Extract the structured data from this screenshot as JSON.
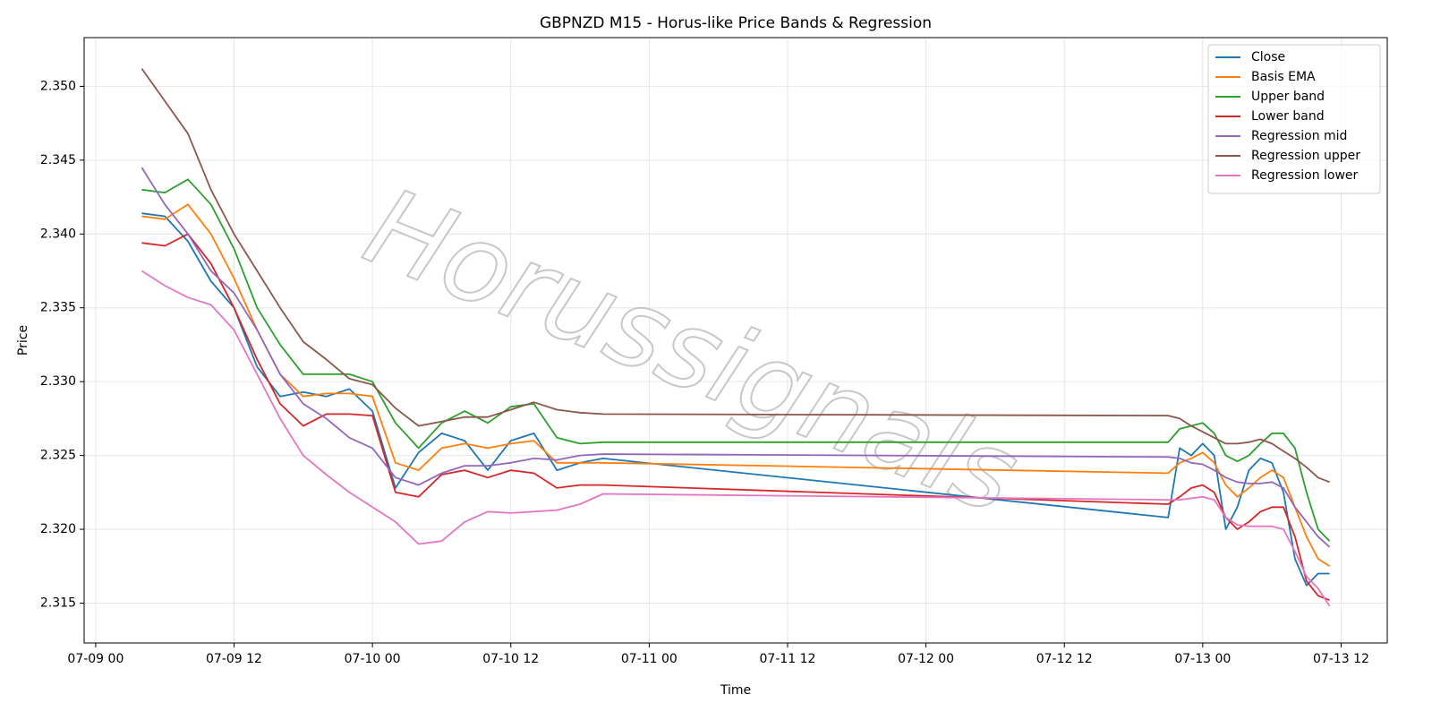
{
  "chart_data": {
    "type": "line",
    "title": "GBPNZD M15 - Horus-like Price Bands & Regression",
    "xlabel": "Time",
    "ylabel": "Price",
    "watermark": "Horussignals",
    "x": [
      "07-09 04",
      "07-09 06",
      "07-09 08",
      "07-09 10",
      "07-09 12",
      "07-09 14",
      "07-09 16",
      "07-09 18",
      "07-09 20",
      "07-09 22",
      "07-10 00",
      "07-10 02",
      "07-10 04",
      "07-10 06",
      "07-10 08",
      "07-10 10",
      "07-10 12",
      "07-10 14",
      "07-10 16",
      "07-10 18",
      "07-10 20",
      "07-12 21",
      "07-12 22",
      "07-12 23",
      "07-13 00",
      "07-13 01",
      "07-13 02",
      "07-13 03",
      "07-13 04",
      "07-13 05",
      "07-13 06",
      "07-13 07",
      "07-13 08",
      "07-13 09",
      "07-13 10",
      "07-13 11"
    ],
    "series": [
      {
        "name": "Close",
        "color": "#1f77b4",
        "values": [
          2.3414,
          2.3412,
          2.3395,
          2.3368,
          2.335,
          2.331,
          2.329,
          2.3293,
          2.329,
          2.3295,
          2.328,
          2.3228,
          2.3252,
          2.3265,
          2.326,
          2.324,
          2.326,
          2.3265,
          2.324,
          2.3245,
          2.3248,
          2.3208,
          2.3255,
          2.325,
          2.3258,
          2.325,
          2.32,
          2.3215,
          2.324,
          2.3248,
          2.3245,
          2.3225,
          2.318,
          2.3162,
          2.317,
          2.317
        ]
      },
      {
        "name": "Basis EMA",
        "color": "#ff7f0e",
        "values": [
          2.3412,
          2.341,
          2.342,
          2.34,
          2.337,
          2.3335,
          2.3305,
          2.329,
          2.3292,
          2.3292,
          2.329,
          2.3245,
          2.324,
          2.3255,
          2.3258,
          2.3255,
          2.3258,
          2.326,
          2.3245,
          2.3245,
          2.3245,
          2.3238,
          2.3245,
          2.3248,
          2.3252,
          2.3245,
          2.323,
          2.3222,
          2.3228,
          2.3235,
          2.324,
          2.3235,
          2.3215,
          2.3195,
          2.318,
          2.3175
        ]
      },
      {
        "name": "Upper band",
        "color": "#2ca02c",
        "values": [
          2.343,
          2.3428,
          2.3437,
          2.342,
          2.339,
          2.335,
          2.3325,
          2.3305,
          2.3305,
          2.3305,
          2.33,
          2.3272,
          2.3255,
          2.3272,
          2.328,
          2.3272,
          2.3283,
          2.3285,
          2.3262,
          2.3258,
          2.3259,
          2.3259,
          2.3268,
          2.327,
          2.3272,
          2.3265,
          2.325,
          2.3246,
          2.325,
          2.3258,
          2.3265,
          2.3265,
          2.3255,
          2.3225,
          2.32,
          2.3192
        ]
      },
      {
        "name": "Lower band",
        "color": "#d62728",
        "values": [
          2.3394,
          2.3392,
          2.34,
          2.338,
          2.335,
          2.3315,
          2.3285,
          2.327,
          2.3278,
          2.3278,
          2.3277,
          2.3225,
          2.3222,
          2.3237,
          2.324,
          2.3235,
          2.324,
          2.3238,
          2.3228,
          2.323,
          2.323,
          2.3217,
          2.3222,
          2.3228,
          2.323,
          2.3225,
          2.3208,
          2.32,
          2.3205,
          2.3212,
          2.3215,
          2.3215,
          2.3195,
          2.3165,
          2.3155,
          2.3152
        ]
      },
      {
        "name": "Regression mid",
        "color": "#9467bd",
        "values": [
          2.3445,
          2.342,
          2.34,
          2.3375,
          2.336,
          2.3335,
          2.3305,
          2.3285,
          2.3275,
          2.3262,
          2.3255,
          2.3235,
          2.323,
          2.3238,
          2.3243,
          2.3243,
          2.3245,
          2.3248,
          2.3247,
          2.325,
          2.3251,
          2.3249,
          2.3248,
          2.3245,
          2.3244,
          2.324,
          2.3235,
          2.3232,
          2.3231,
          2.3231,
          2.3232,
          2.3228,
          2.3215,
          2.3205,
          2.3195,
          2.3188
        ]
      },
      {
        "name": "Regression upper",
        "color": "#8c564b",
        "values": [
          2.3512,
          2.349,
          2.3468,
          2.343,
          2.34,
          2.3375,
          2.335,
          2.3327,
          2.3315,
          2.3302,
          2.3298,
          2.3282,
          2.327,
          2.3273,
          2.3276,
          2.3276,
          2.3281,
          2.3286,
          2.3281,
          2.3279,
          2.3278,
          2.3277,
          2.3275,
          2.327,
          2.3266,
          2.3262,
          2.3258,
          2.3258,
          2.3259,
          2.3261,
          2.3258,
          2.3253,
          2.3248,
          2.3242,
          2.3235,
          2.3232
        ]
      },
      {
        "name": "Regression lower",
        "color": "#e377c2",
        "values": [
          2.3375,
          2.3365,
          2.3357,
          2.3352,
          2.3335,
          2.3305,
          2.3275,
          2.325,
          2.3237,
          2.3225,
          2.3215,
          2.3205,
          2.319,
          2.3192,
          2.3205,
          2.3212,
          2.3211,
          2.3212,
          2.3213,
          2.3217,
          2.3224,
          2.322,
          2.322,
          2.3221,
          2.3222,
          2.322,
          2.3208,
          2.3203,
          2.3202,
          2.3202,
          2.3202,
          2.32,
          2.3185,
          2.3168,
          2.316,
          2.3148
        ]
      }
    ],
    "xlim": [
      "07-08 23",
      "07-13 16"
    ],
    "xticks": [
      "07-09 00",
      "07-09 12",
      "07-10 00",
      "07-10 12",
      "07-11 00",
      "07-11 12",
      "07-12 00",
      "07-12 12",
      "07-13 00",
      "07-13 12"
    ],
    "ylim": [
      2.3123,
      2.3533
    ],
    "yticks": [
      2.315,
      {
        "value": 2.32,
        "label": "2.320"
      },
      2.325,
      {
        "value": 2.33,
        "label": "2.330"
      },
      2.335,
      {
        "value": 2.34,
        "label": "2.340"
      },
      2.345,
      {
        "value": 2.35,
        "label": "2.350"
      }
    ],
    "grid": true,
    "legend": "upper right"
  }
}
